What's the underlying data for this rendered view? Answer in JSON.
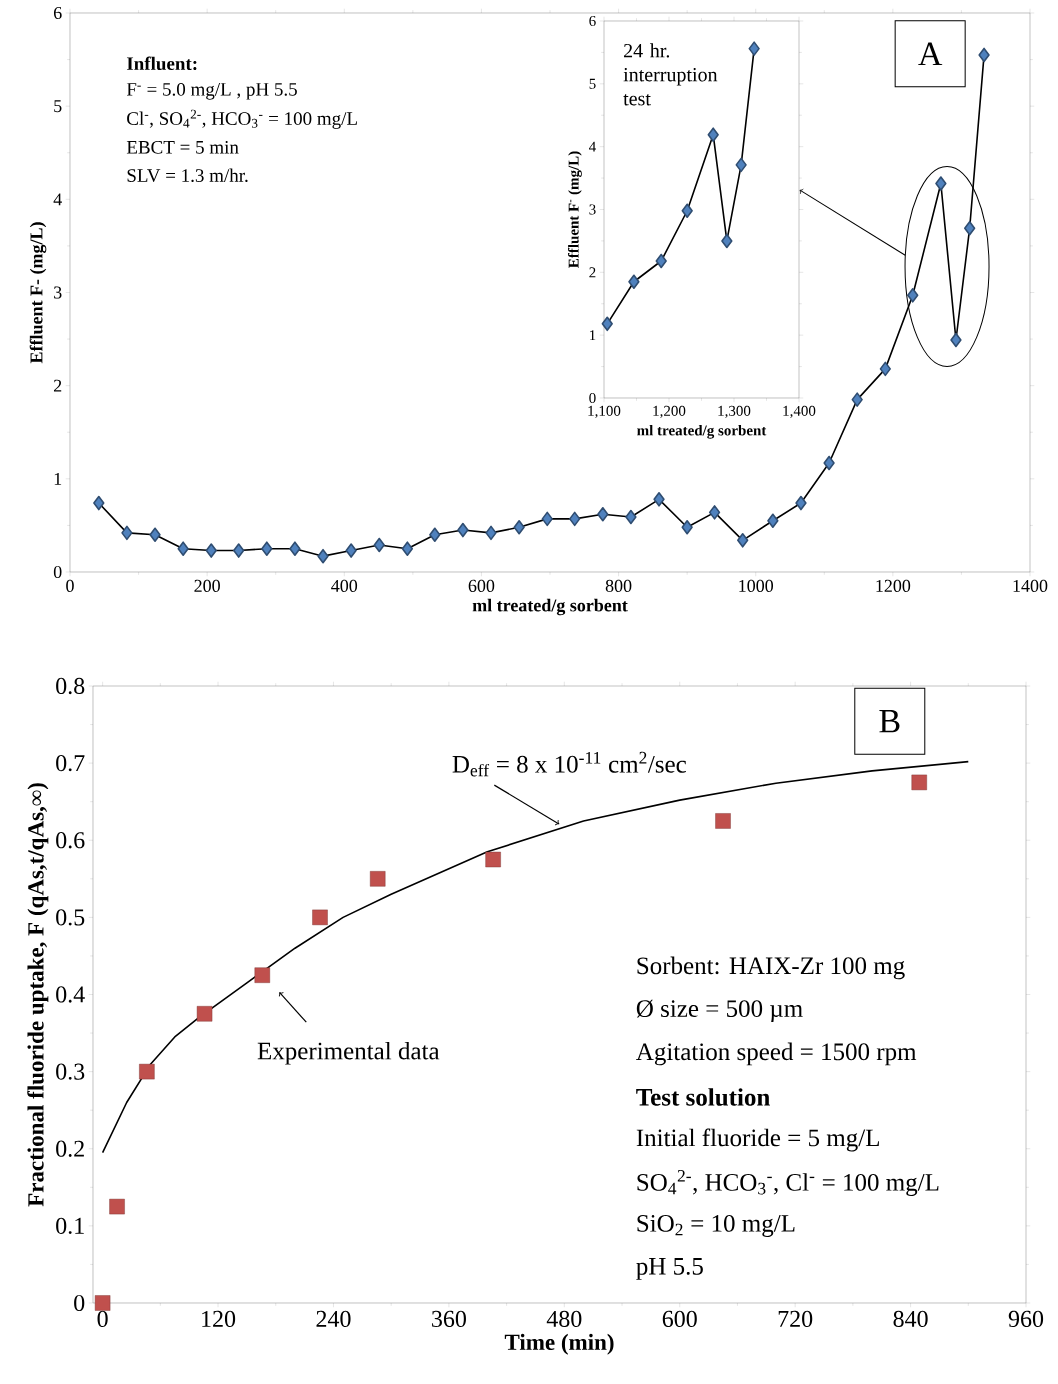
{
  "chart_data": [
    {
      "type": "line",
      "title": "A",
      "xlabel": "ml treated/g sorbent",
      "ylabel": "Effluent F- (mg/L)",
      "color": "#4f81bd",
      "marker": "diamond",
      "x": [
        42,
        83,
        124,
        165,
        206,
        246,
        287,
        328,
        369,
        410,
        451,
        492,
        532,
        573,
        614,
        655,
        696,
        736,
        777,
        818,
        859,
        900,
        940,
        981,
        1025,
        1066,
        1107,
        1148,
        1189,
        1229,
        1270,
        1292,
        1312,
        1333
      ],
      "values": [
        0.74,
        0.42,
        0.4,
        0.25,
        0.23,
        0.23,
        0.25,
        0.25,
        0.17,
        0.23,
        0.29,
        0.25,
        0.4,
        0.45,
        0.42,
        0.48,
        0.57,
        0.57,
        0.62,
        0.59,
        0.78,
        0.48,
        0.64,
        0.34,
        0.55,
        0.74,
        1.17,
        1.85,
        2.18,
        2.97,
        4.17,
        2.49,
        3.69,
        5.55
      ],
      "xlim": [
        0,
        1400
      ],
      "ylim": [
        0,
        6
      ],
      "xticks": [
        0,
        200,
        400,
        600,
        800,
        1000,
        1200,
        1400
      ],
      "yticks": [
        0,
        1,
        2,
        3,
        4,
        5,
        6
      ],
      "annotations": [
        "**Influent:**",
        "F$^{-}$ = 5.0 mg/L , pH 5.5",
        "Cl$^{-}$, SO$_{4}$$^{2-}$, HCO$_{3}$$^{-}$ = 100 mg/L",
        "EBCT = 5 min",
        "SLV = 1.3 m/hr."
      ]
    },
    {
      "type": "line",
      "title": "24 hr. interruption test",
      "xlabel": "ml treated/g sorbent",
      "ylabel": "Effluent F$^{-}$ (mg/L)",
      "color": "#4f81bd",
      "marker": "diamond",
      "x": [
        1105,
        1146,
        1188,
        1228,
        1268,
        1289,
        1311,
        1331
      ],
      "values": [
        1.18,
        1.85,
        2.18,
        2.98,
        4.19,
        2.5,
        3.71,
        5.56
      ],
      "xlim": [
        1100,
        1400
      ],
      "ylim": [
        0,
        6
      ],
      "xticks": [
        {
          "value": 1100,
          "label": "1,100"
        },
        {
          "value": 1200,
          "label": "1,200"
        },
        {
          "value": 1300,
          "label": "1,300"
        },
        {
          "value": 1400,
          "label": "1,400"
        }
      ],
      "yticks": [
        0,
        1,
        2,
        3,
        4,
        5,
        6
      ]
    },
    {
      "type": "scatter",
      "title": "B",
      "xlabel": "Time (min)",
      "ylabel": "Fractional fluoride uptake, F (qAs,t/qAs,∞)",
      "series": [
        {
          "type": "scatter",
          "color": "#c0504d",
          "marker": "square",
          "x": [
            0,
            15,
            46,
            106,
            166,
            226,
            286,
            406,
            645,
            849
          ],
          "values": [
            0,
            0.125,
            0.3,
            0.375,
            0.425,
            0.5,
            0.55,
            0.575,
            0.625,
            0.675
          ]
        },
        {
          "type": "line",
          "color": "#000000",
          "marker": "none",
          "x": [
            0,
            25,
            50,
            75,
            100,
            150,
            200,
            250,
            300,
            400,
            500,
            600,
            700,
            800,
            900
          ],
          "values": [
            0.195,
            0.26,
            0.31,
            0.345,
            0.37,
            0.415,
            0.46,
            0.5,
            0.53,
            0.585,
            0.625,
            0.652,
            0.674,
            0.69,
            0.702
          ]
        }
      ],
      "xlim": [
        -10,
        960
      ],
      "ylim": [
        0,
        0.8
      ],
      "xticks": [
        0,
        120,
        240,
        360,
        480,
        600,
        720,
        840,
        960
      ],
      "yticks": [
        0,
        0.1,
        0.2,
        0.3,
        0.4,
        0.5,
        0.6,
        0.7,
        0.8
      ],
      "annotations": [
        {
          "text": "D$_{eff}$ = 8 x 10$^{-11}$ cm$^{2}$/sec",
          "x": 480,
          "y": 0.617
        },
        {
          "text": "Experimental data",
          "x": 166,
          "y": 0.425
        },
        "Sorbent: HAIX-Zr 100 mg",
        "Ø size = 500 µm",
        "Agitation speed = 1500 rpm",
        "**Test solution**",
        "Initial fluoride = 5 mg/L",
        "SO$_{4}$$^{2-}$, HCO$_{3}$$^{-}$, Cl$^{-}$ = 100 mg/L",
        "SiO$_{2}$ = 10 mg/L",
        "pH 5.5"
      ]
    }
  ]
}
